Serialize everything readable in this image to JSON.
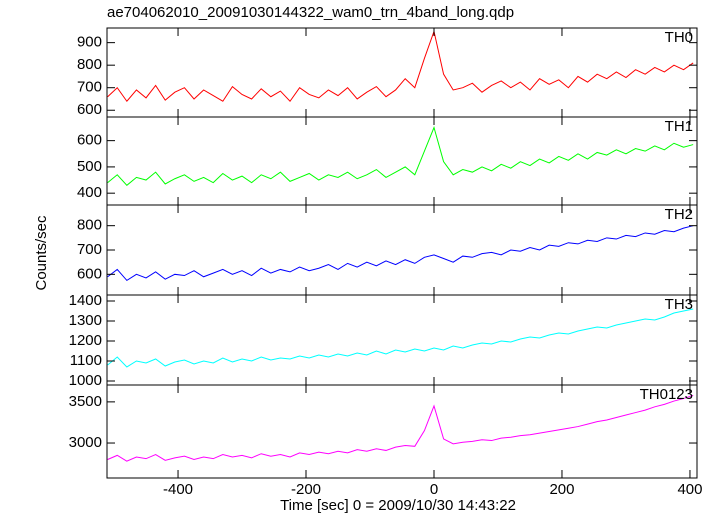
{
  "title": "ae704062010_20091030144322_wam0_trn_4band_long.qdp",
  "ylabel": "Counts/sec",
  "xlabel": "Time [sec] 0 = 2009/10/30 14:43:22",
  "chart_data": [
    {
      "type": "line",
      "xlim": [
        -511,
        411
      ],
      "xticks": [
        -400,
        -200,
        0,
        200,
        400
      ],
      "ylim": [
        570,
        965
      ],
      "yticks": [
        600,
        700,
        800,
        900
      ],
      "x": [
        -510,
        -495,
        -480,
        -465,
        -450,
        -435,
        -420,
        -405,
        -390,
        -375,
        -360,
        -345,
        -330,
        -315,
        -300,
        -285,
        -270,
        -255,
        -240,
        -225,
        -210,
        -195,
        -180,
        -165,
        -150,
        -135,
        -120,
        -105,
        -90,
        -75,
        -60,
        -45,
        -30,
        -15,
        0,
        15,
        30,
        45,
        60,
        75,
        90,
        105,
        120,
        135,
        150,
        165,
        180,
        195,
        210,
        225,
        240,
        255,
        270,
        285,
        300,
        315,
        330,
        345,
        360,
        375,
        390,
        405
      ],
      "series": [
        {
          "name": "TH0",
          "color": "#ff0000",
          "values": [
            660,
            700,
            640,
            690,
            655,
            710,
            645,
            680,
            700,
            650,
            690,
            665,
            640,
            705,
            670,
            650,
            695,
            660,
            685,
            640,
            700,
            670,
            655,
            690,
            665,
            700,
            650,
            680,
            705,
            660,
            690,
            740,
            700,
            830,
            950,
            760,
            690,
            700,
            720,
            680,
            710,
            730,
            700,
            725,
            690,
            740,
            715,
            735,
            700,
            750,
            725,
            760,
            740,
            770,
            745,
            780,
            760,
            790,
            770,
            800,
            780,
            810
          ]
        }
      ]
    },
    {
      "type": "line",
      "xlim": [
        -511,
        411
      ],
      "xticks": [
        -400,
        -200,
        0,
        200,
        400
      ],
      "ylim": [
        355,
        690
      ],
      "yticks": [
        400,
        500,
        600
      ],
      "x": [
        -510,
        -495,
        -480,
        -465,
        -450,
        -435,
        -420,
        -405,
        -390,
        -375,
        -360,
        -345,
        -330,
        -315,
        -300,
        -285,
        -270,
        -255,
        -240,
        -225,
        -210,
        -195,
        -180,
        -165,
        -150,
        -135,
        -120,
        -105,
        -90,
        -75,
        -60,
        -45,
        -30,
        -15,
        0,
        15,
        30,
        45,
        60,
        75,
        90,
        105,
        120,
        135,
        150,
        165,
        180,
        195,
        210,
        225,
        240,
        255,
        270,
        285,
        300,
        315,
        330,
        345,
        360,
        375,
        390,
        405
      ],
      "series": [
        {
          "name": "TH1",
          "color": "#00ff00",
          "values": [
            440,
            470,
            430,
            460,
            450,
            480,
            435,
            455,
            470,
            445,
            460,
            440,
            475,
            450,
            465,
            440,
            470,
            455,
            480,
            445,
            460,
            475,
            450,
            470,
            460,
            480,
            455,
            470,
            490,
            460,
            480,
            500,
            470,
            560,
            650,
            520,
            470,
            490,
            480,
            500,
            485,
            510,
            495,
            520,
            505,
            530,
            515,
            540,
            525,
            550,
            530,
            555,
            545,
            565,
            550,
            570,
            560,
            580,
            565,
            590,
            575,
            585
          ]
        }
      ]
    },
    {
      "type": "line",
      "xlim": [
        -511,
        411
      ],
      "xticks": [
        -400,
        -200,
        0,
        200,
        400
      ],
      "ylim": [
        515,
        885
      ],
      "yticks": [
        600,
        700,
        800
      ],
      "x": [
        -510,
        -495,
        -480,
        -465,
        -450,
        -435,
        -420,
        -405,
        -390,
        -375,
        -360,
        -345,
        -330,
        -315,
        -300,
        -285,
        -270,
        -255,
        -240,
        -225,
        -210,
        -195,
        -180,
        -165,
        -150,
        -135,
        -120,
        -105,
        -90,
        -75,
        -60,
        -45,
        -30,
        -15,
        0,
        15,
        30,
        45,
        60,
        75,
        90,
        105,
        120,
        135,
        150,
        165,
        180,
        195,
        210,
        225,
        240,
        255,
        270,
        285,
        300,
        315,
        330,
        345,
        360,
        375,
        390,
        405
      ],
      "series": [
        {
          "name": "TH2",
          "color": "#0000ff",
          "values": [
            590,
            620,
            575,
            600,
            585,
            610,
            580,
            600,
            595,
            615,
            590,
            605,
            620,
            600,
            615,
            595,
            625,
            605,
            620,
            610,
            630,
            615,
            625,
            640,
            620,
            645,
            630,
            650,
            635,
            655,
            640,
            660,
            645,
            670,
            680,
            665,
            650,
            675,
            670,
            685,
            690,
            680,
            700,
            695,
            710,
            700,
            720,
            715,
            730,
            725,
            740,
            735,
            750,
            745,
            760,
            755,
            770,
            765,
            780,
            775,
            790,
            800
          ]
        }
      ]
    },
    {
      "type": "line",
      "xlim": [
        -511,
        411
      ],
      "xticks": [
        -400,
        -200,
        0,
        200,
        400
      ],
      "ylim": [
        980,
        1430
      ],
      "yticks": [
        1000,
        1100,
        1200,
        1300,
        1400
      ],
      "x": [
        -510,
        -495,
        -480,
        -465,
        -450,
        -435,
        -420,
        -405,
        -390,
        -375,
        -360,
        -345,
        -330,
        -315,
        -300,
        -285,
        -270,
        -255,
        -240,
        -225,
        -210,
        -195,
        -180,
        -165,
        -150,
        -135,
        -120,
        -105,
        -90,
        -75,
        -60,
        -45,
        -30,
        -15,
        0,
        15,
        30,
        45,
        60,
        75,
        90,
        105,
        120,
        135,
        150,
        165,
        180,
        195,
        210,
        225,
        240,
        255,
        270,
        285,
        300,
        315,
        330,
        345,
        360,
        375,
        390,
        405
      ],
      "series": [
        {
          "name": "TH3",
          "color": "#00ffff",
          "values": [
            1080,
            1120,
            1070,
            1100,
            1090,
            1110,
            1075,
            1095,
            1105,
            1085,
            1100,
            1090,
            1115,
            1095,
            1110,
            1100,
            1120,
            1105,
            1115,
            1110,
            1125,
            1115,
            1130,
            1120,
            1135,
            1125,
            1140,
            1130,
            1150,
            1135,
            1155,
            1145,
            1160,
            1150,
            1165,
            1155,
            1175,
            1165,
            1180,
            1190,
            1185,
            1200,
            1195,
            1210,
            1220,
            1215,
            1230,
            1240,
            1235,
            1250,
            1260,
            1270,
            1265,
            1280,
            1290,
            1300,
            1310,
            1305,
            1320,
            1340,
            1350,
            1360
          ]
        }
      ]
    },
    {
      "type": "line",
      "xlim": [
        -511,
        411
      ],
      "xticks": [
        -400,
        -200,
        0,
        200,
        400
      ],
      "ylim": [
        2575,
        3705
      ],
      "yticks": [
        3000,
        3500
      ],
      "x": [
        -510,
        -495,
        -480,
        -465,
        -450,
        -435,
        -420,
        -405,
        -390,
        -375,
        -360,
        -345,
        -330,
        -315,
        -300,
        -285,
        -270,
        -255,
        -240,
        -225,
        -210,
        -195,
        -180,
        -165,
        -150,
        -135,
        -120,
        -105,
        -90,
        -75,
        -60,
        -45,
        -30,
        -15,
        0,
        15,
        30,
        45,
        60,
        75,
        90,
        105,
        120,
        135,
        150,
        165,
        180,
        195,
        210,
        225,
        240,
        255,
        270,
        285,
        300,
        315,
        330,
        345,
        360,
        375,
        390,
        405
      ],
      "series": [
        {
          "name": "TH0123",
          "color": "#ff00ff",
          "values": [
            2800,
            2850,
            2780,
            2830,
            2810,
            2860,
            2790,
            2820,
            2840,
            2800,
            2830,
            2810,
            2860,
            2830,
            2850,
            2820,
            2870,
            2840,
            2860,
            2830,
            2880,
            2860,
            2890,
            2870,
            2900,
            2880,
            2920,
            2900,
            2930,
            2910,
            2950,
            2970,
            2960,
            3150,
            3450,
            3050,
            2990,
            3010,
            3020,
            3040,
            3030,
            3060,
            3070,
            3090,
            3100,
            3120,
            3140,
            3160,
            3180,
            3200,
            3230,
            3260,
            3280,
            3310,
            3340,
            3370,
            3400,
            3440,
            3470,
            3510,
            3540,
            3580
          ]
        }
      ]
    }
  ]
}
